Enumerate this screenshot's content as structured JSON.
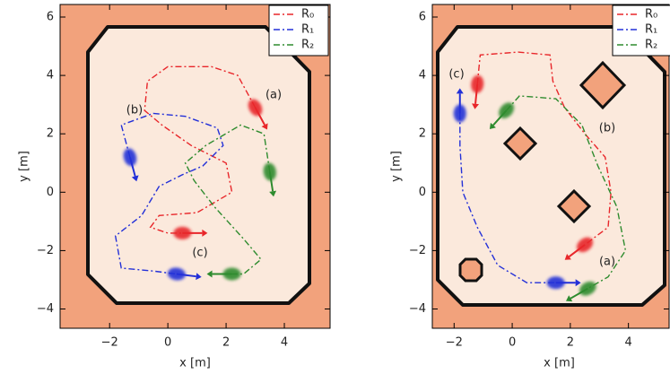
{
  "chart_data": [
    {
      "type": "line",
      "xlabel": "x [m]",
      "ylabel": "y [m]",
      "xlim": [
        -3.7,
        5.57
      ],
      "ylim": [
        -4.66,
        6.43
      ],
      "xticks": [
        {
          "value": -2,
          "label": "−2"
        },
        0,
        2,
        4
      ],
      "yticks": [
        {
          "value": -4,
          "label": "−4"
        },
        {
          "value": -2,
          "label": "−2"
        },
        0,
        2,
        4,
        6
      ],
      "legend": "upper right",
      "linestyle": "dashdot",
      "annotations": [
        "(a)",
        "(b)",
        "(c)"
      ],
      "series": [
        {
          "name": "R₀",
          "color": "#e8262a",
          "x": [
            3.0,
            2.4,
            1.5,
            0.0,
            -0.7,
            -0.8,
            -0.2,
            0.8,
            2.0,
            2.2,
            1.0,
            -0.3,
            -0.6,
            0.0,
            0.5
          ],
          "values": [
            2.9,
            4.0,
            4.3,
            4.3,
            3.8,
            2.8,
            2.3,
            1.6,
            1.0,
            0.0,
            -0.7,
            -0.8,
            -1.2,
            -1.4,
            -1.4
          ]
        },
        {
          "name": "R₁",
          "color": "#2330d8",
          "x": [
            -1.3,
            -1.6,
            -0.5,
            0.6,
            1.7,
            1.9,
            1.2,
            0.5,
            -0.3,
            -0.9,
            -1.8,
            -1.6,
            -0.5,
            0.3
          ],
          "values": [
            1.2,
            2.3,
            2.7,
            2.6,
            2.2,
            1.6,
            0.9,
            0.6,
            0.2,
            -0.8,
            -1.5,
            -2.6,
            -2.7,
            -2.8
          ]
        },
        {
          "name": "R₂",
          "color": "#2e8b2e",
          "x": [
            3.5,
            3.3,
            2.5,
            1.3,
            0.6,
            0.9,
            1.6,
            2.6,
            3.2,
            2.6,
            2.2
          ],
          "values": [
            0.7,
            2.0,
            2.3,
            1.6,
            1.0,
            0.4,
            -0.5,
            -1.6,
            -2.3,
            -2.8,
            -2.8
          ]
        }
      ]
    },
    {
      "type": "line",
      "xlabel": "x [m]",
      "ylabel": "y [m]",
      "xlim": [
        -2.75,
        5.4
      ],
      "ylim": [
        -4.66,
        6.43
      ],
      "xticks": [
        {
          "value": -2,
          "label": "−2"
        },
        0,
        2,
        4
      ],
      "yticks": [
        {
          "value": -4,
          "label": "−4"
        },
        {
          "value": -2,
          "label": "−2"
        },
        0,
        2,
        4,
        6
      ],
      "legend": "upper right",
      "linestyle": "dashdot",
      "annotations": [
        "(a)",
        "(b)",
        "(c)"
      ],
      "series": [
        {
          "name": "R₀",
          "color": "#e8262a",
          "x": [
            -1.2,
            -1.1,
            0.2,
            1.3,
            1.4,
            1.8,
            2.5,
            3.2,
            3.4,
            3.3,
            2.5
          ],
          "values": [
            3.7,
            4.7,
            4.8,
            4.7,
            3.8,
            2.9,
            2.0,
            1.2,
            0.0,
            -1.2,
            -1.8
          ]
        },
        {
          "name": "R₁",
          "color": "#2330d8",
          "x": [
            -1.8,
            -1.8,
            -1.7,
            -1.2,
            -0.5,
            0.5,
            1.5
          ],
          "values": [
            2.7,
            1.6,
            0.0,
            -1.2,
            -2.5,
            -3.1,
            -3.1
          ]
        },
        {
          "name": "R₂",
          "color": "#2e8b2e",
          "x": [
            -0.2,
            0.25,
            1.5,
            2.4,
            2.95,
            3.6,
            3.9,
            3.3,
            2.6
          ],
          "values": [
            2.8,
            3.3,
            3.2,
            2.3,
            0.9,
            -0.5,
            -2.0,
            -2.9,
            -3.3
          ]
        }
      ]
    }
  ]
}
